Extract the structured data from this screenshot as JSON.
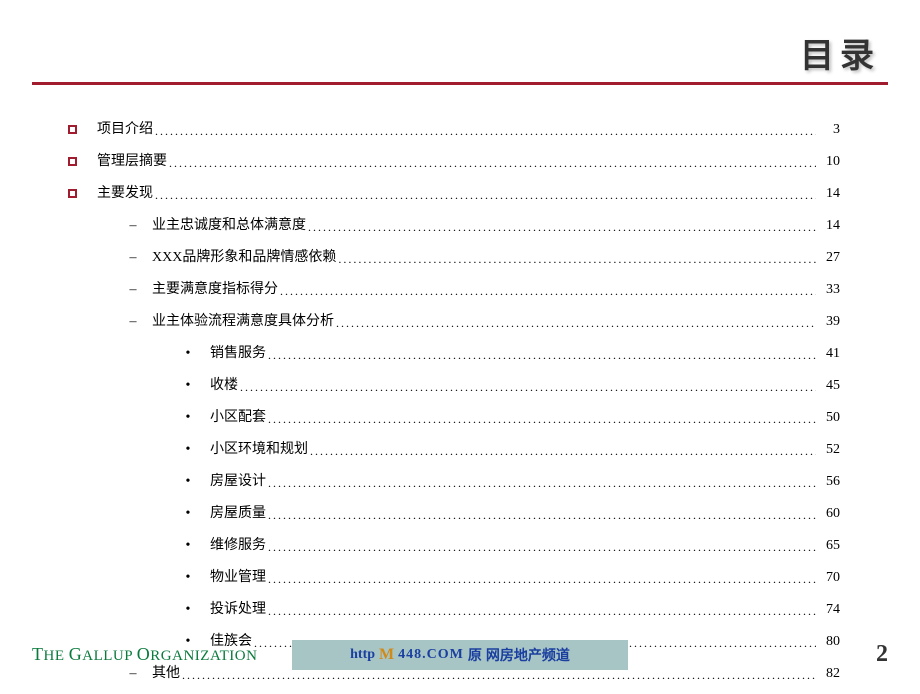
{
  "title": "目录",
  "colors": {
    "accent": "#a01c2e",
    "footer_bg": "#a8c5c5",
    "footer_link": "#1a3fa0",
    "org_green": "#0a7a3d"
  },
  "toc": [
    {
      "level": 1,
      "label": "项目介绍",
      "page": "3"
    },
    {
      "level": 1,
      "label": "管理层摘要",
      "page": "10"
    },
    {
      "level": 1,
      "label": "主要发现",
      "page": "14"
    },
    {
      "level": 2,
      "label": "业主忠诚度和总体满意度",
      "page": "14"
    },
    {
      "level": 2,
      "label": "XXX品牌形象和品牌情感依赖",
      "page": "27"
    },
    {
      "level": 2,
      "label": "主要满意度指标得分",
      "page": "33"
    },
    {
      "level": 2,
      "label": "业主体验流程满意度具体分析",
      "page": "39"
    },
    {
      "level": 3,
      "label": "销售服务",
      "page": "41"
    },
    {
      "level": 3,
      "label": "收楼",
      "page": "45"
    },
    {
      "level": 3,
      "label": "小区配套",
      "page": "50"
    },
    {
      "level": 3,
      "label": "小区环境和规划",
      "page": "52"
    },
    {
      "level": 3,
      "label": "房屋设计",
      "page": "56"
    },
    {
      "level": 3,
      "label": "房屋质量",
      "page": "60"
    },
    {
      "level": 3,
      "label": "维修服务",
      "page": "65"
    },
    {
      "level": 3,
      "label": "物业管理",
      "page": "70"
    },
    {
      "level": 3,
      "label": "投诉处理",
      "page": "74"
    },
    {
      "level": 3,
      "label": "佳族会",
      "page": "80"
    },
    {
      "level": 2,
      "label": "其他",
      "page": "82"
    }
  ],
  "footer": {
    "org_prefix": "T",
    "org_text1": "HE ",
    "org_cap2": "G",
    "org_text2": "ALLUP ",
    "org_cap3": "O",
    "org_text3": "RGANIZATION",
    "center_prefix": "http",
    "center_logo": "M",
    "center_num": "448.COM",
    "center_suffix": "网房地产频道",
    "center_mid": "原",
    "page_num": "2"
  }
}
